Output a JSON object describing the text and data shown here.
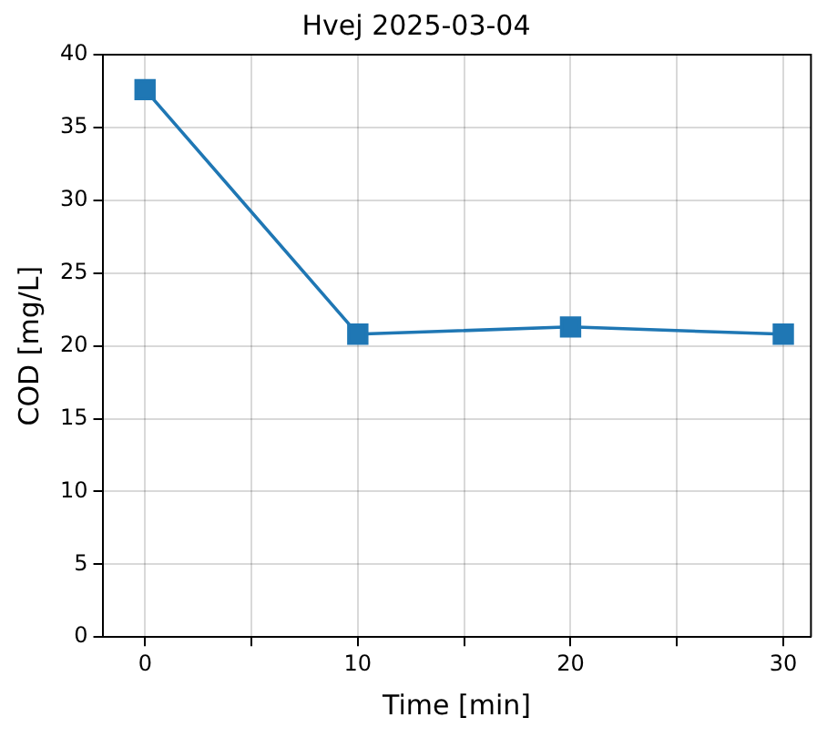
{
  "chart_data": {
    "type": "line",
    "title": "Hvej 2025-03-04",
    "xlabel": "Time [min]",
    "ylabel": "COD [mg/L]",
    "x": [
      0,
      10,
      20,
      30
    ],
    "series": [
      {
        "color": "#1f77b4",
        "values": [
          37.6,
          20.8,
          21.3,
          20.8
        ]
      }
    ],
    "xlim": [
      -2,
      31.3
    ],
    "xticks": [
      0,
      {
        "value": 5,
        "label": null
      },
      10,
      {
        "value": 15,
        "label": null
      },
      20,
      {
        "value": 25,
        "label": null
      },
      30
    ],
    "ylim": [
      0,
      40
    ],
    "yticks": [
      0,
      5,
      10,
      15,
      20,
      25,
      30,
      35,
      40
    ],
    "grid": true,
    "legend": false,
    "marker": "square",
    "line_style": "solid"
  }
}
